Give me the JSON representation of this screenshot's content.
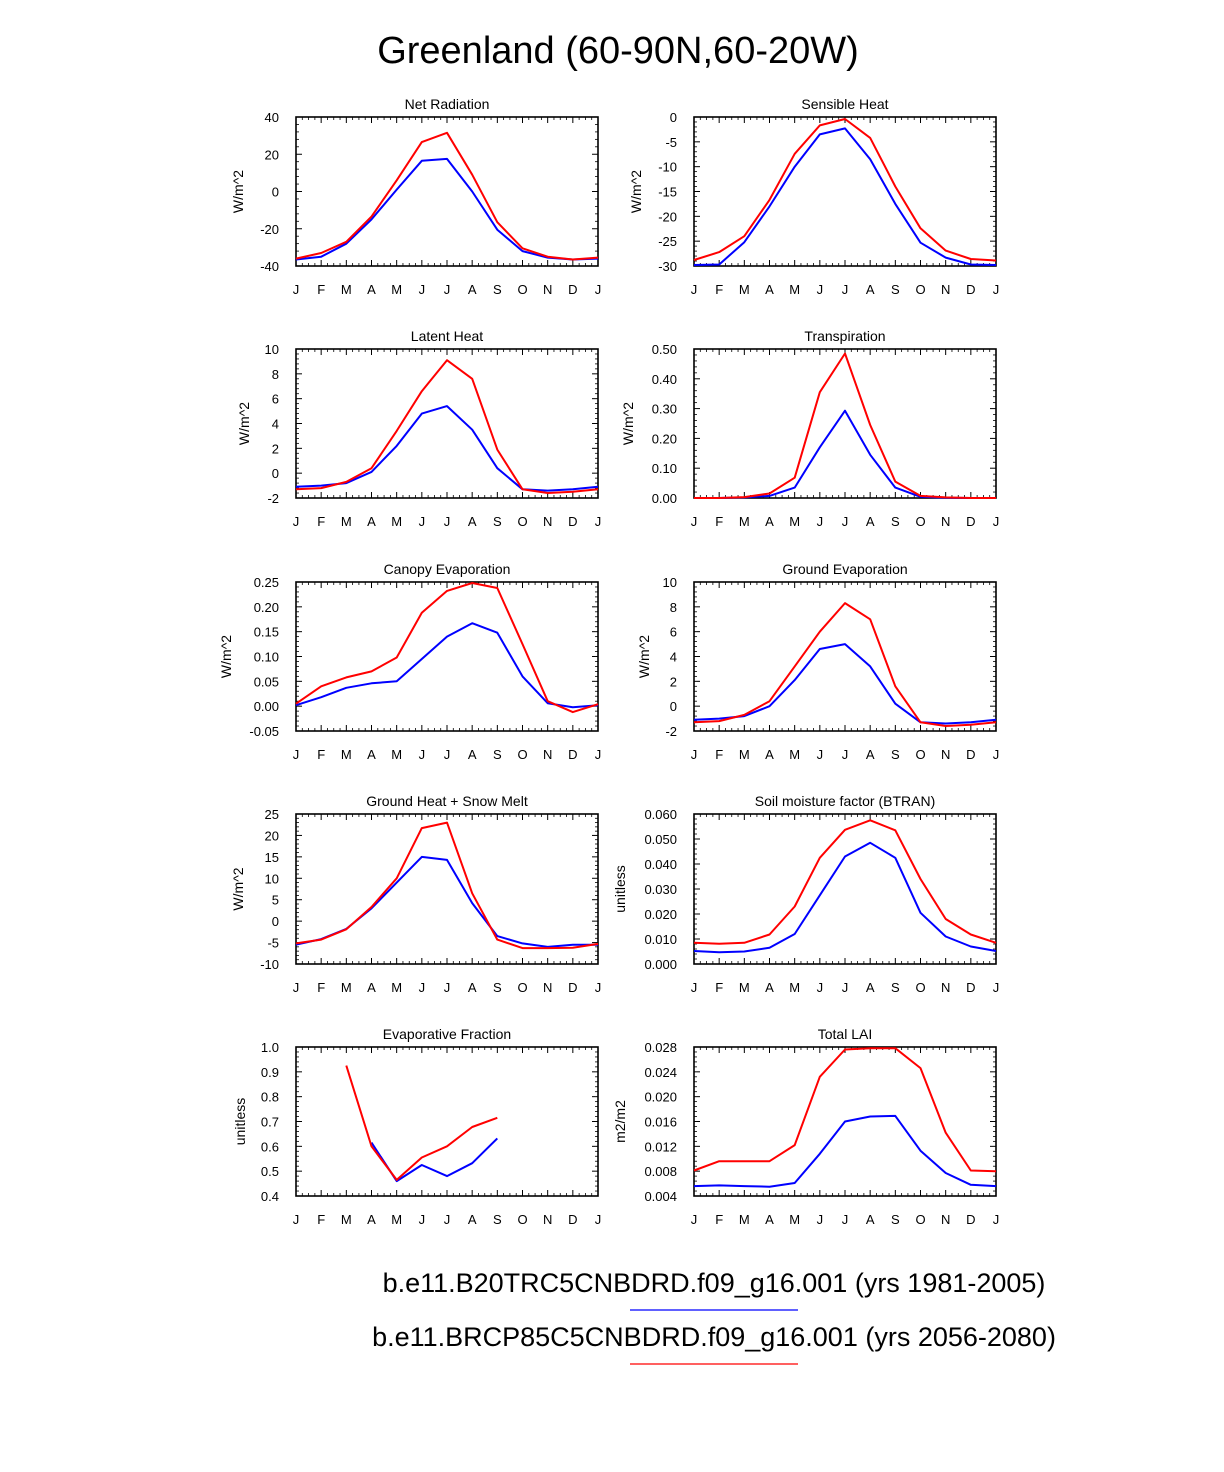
{
  "title": "Greenland (60-90N,60-20W)",
  "colors": {
    "historical": "#0000ff",
    "future": "#ff0000",
    "axis": "#000000",
    "background": "#ffffff"
  },
  "legend": [
    {
      "label": "b.e11.B20TRC5CNBDRD.f09_g16.001 (yrs 1981-2005)",
      "color": "#0000ff"
    },
    {
      "label": "b.e11.BRCP85C5CNBDRD.f09_g16.001 (yrs 2056-2080)",
      "color": "#ff0000"
    }
  ],
  "chart_data": [
    {
      "type": "line",
      "title": "Net Radiation",
      "ylabel": "W/m^2",
      "categories": [
        "J",
        "F",
        "M",
        "A",
        "M",
        "J",
        "J",
        "A",
        "S",
        "O",
        "N",
        "D",
        "J"
      ],
      "ylim": [
        -40,
        40
      ],
      "yticks": [
        "-40",
        "-20",
        "0",
        "20",
        "40"
      ],
      "series": [
        {
          "name": "b.e11.B20TRC5CNBDRD.f09_g16.001 (yrs 1981-2005)",
          "color": "#0000ff",
          "values": [
            -36.5,
            -35,
            -28,
            -15,
            1,
            16.5,
            17.5,
            0,
            -20.5,
            -32,
            -35.5,
            -36.5,
            -36
          ]
        },
        {
          "name": "b.e11.BRCP85C5CNBDRD.f09_g16.001 (yrs 2056-2080)",
          "color": "#ff0000",
          "values": [
            -36,
            -33,
            -27,
            -13.5,
            6,
            26.5,
            31.5,
            9,
            -16.5,
            -30.5,
            -35,
            -36.5,
            -35.5
          ]
        }
      ]
    },
    {
      "type": "line",
      "title": "Sensible Heat",
      "ylabel": "W/m^2",
      "categories": [
        "J",
        "F",
        "M",
        "A",
        "M",
        "J",
        "J",
        "A",
        "S",
        "O",
        "N",
        "D",
        "J"
      ],
      "ylim": [
        -30,
        0
      ],
      "yticks": [
        "-30",
        "-25",
        "-20",
        "-15",
        "-10",
        "-5",
        "0"
      ],
      "series": [
        {
          "name": "b.e11.B20TRC5CNBDRD.f09_g16.001 (yrs 1981-2005)",
          "color": "#0000ff",
          "values": [
            -29.8,
            -29.7,
            -25.2,
            -18,
            -10,
            -3.5,
            -2.3,
            -8.5,
            -17.5,
            -25.3,
            -28.3,
            -29.7,
            -29.8
          ]
        },
        {
          "name": "b.e11.BRCP85C5CNBDRD.f09_g16.001 (yrs 2056-2080)",
          "color": "#ff0000",
          "values": [
            -28.8,
            -27.2,
            -24,
            -16.7,
            -7.4,
            -1.7,
            -0.4,
            -4.2,
            -14,
            -22.4,
            -26.9,
            -28.6,
            -28.9
          ]
        }
      ]
    },
    {
      "type": "line",
      "title": "Latent Heat",
      "ylabel": "W/m^2",
      "categories": [
        "J",
        "F",
        "M",
        "A",
        "M",
        "J",
        "J",
        "A",
        "S",
        "O",
        "N",
        "D",
        "J"
      ],
      "ylim": [
        -2,
        10
      ],
      "yticks": [
        "-2",
        "0",
        "2",
        "4",
        "6",
        "8",
        "10"
      ],
      "series": [
        {
          "name": "b.e11.B20TRC5CNBDRD.f09_g16.001 (yrs 1981-2005)",
          "color": "#0000ff",
          "values": [
            -1.1,
            -1,
            -0.8,
            0.1,
            2.2,
            4.8,
            5.4,
            3.5,
            0.4,
            -1.3,
            -1.4,
            -1.3,
            -1.1
          ]
        },
        {
          "name": "b.e11.BRCP85C5CNBDRD.f09_g16.001 (yrs 2056-2080)",
          "color": "#ff0000",
          "values": [
            -1.3,
            -1.2,
            -0.7,
            0.4,
            3.4,
            6.6,
            9.1,
            7.6,
            1.9,
            -1.3,
            -1.6,
            -1.5,
            -1.3
          ]
        }
      ]
    },
    {
      "type": "line",
      "title": "Transpiration",
      "ylabel": "W/m^2",
      "categories": [
        "J",
        "F",
        "M",
        "A",
        "M",
        "J",
        "J",
        "A",
        "S",
        "O",
        "N",
        "D",
        "J"
      ],
      "ylim": [
        0,
        0.5
      ],
      "yticks": [
        "0.00",
        "0.10",
        "0.20",
        "0.30",
        "0.40",
        "0.50"
      ],
      "series": [
        {
          "name": "b.e11.B20TRC5CNBDRD.f09_g16.001 (yrs 1981-2005)",
          "color": "#0000ff",
          "values": [
            0,
            0,
            0.002,
            0.007,
            0.035,
            0.17,
            0.293,
            0.145,
            0.035,
            0.004,
            0.001,
            0,
            0
          ]
        },
        {
          "name": "b.e11.BRCP85C5CNBDRD.f09_g16.001 (yrs 2056-2080)",
          "color": "#ff0000",
          "values": [
            0,
            0,
            0.003,
            0.015,
            0.068,
            0.355,
            0.485,
            0.245,
            0.055,
            0.007,
            0.002,
            0,
            0
          ]
        }
      ]
    },
    {
      "type": "line",
      "title": "Canopy Evaporation",
      "ylabel": "W/m^2",
      "categories": [
        "J",
        "F",
        "M",
        "A",
        "M",
        "J",
        "J",
        "A",
        "S",
        "O",
        "N",
        "D",
        "J"
      ],
      "ylim": [
        -0.05,
        0.25
      ],
      "yticks": [
        "-0.05",
        "0.00",
        "0.05",
        "0.10",
        "0.15",
        "0.20",
        "0.25"
      ],
      "series": [
        {
          "name": "b.e11.B20TRC5CNBDRD.f09_g16.001 (yrs 1981-2005)",
          "color": "#0000ff",
          "values": [
            0.002,
            0.018,
            0.037,
            0.046,
            0.05,
            0.095,
            0.14,
            0.167,
            0.148,
            0.06,
            0.006,
            -0.002,
            0.002
          ]
        },
        {
          "name": "b.e11.BRCP85C5CNBDRD.f09_g16.001 (yrs 2056-2080)",
          "color": "#ff0000",
          "values": [
            0.005,
            0.04,
            0.058,
            0.07,
            0.098,
            0.188,
            0.232,
            0.248,
            0.238,
            0.125,
            0.01,
            -0.012,
            0.004
          ]
        }
      ]
    },
    {
      "type": "line",
      "title": "Ground Evaporation",
      "ylabel": "W/m^2",
      "categories": [
        "J",
        "F",
        "M",
        "A",
        "M",
        "J",
        "J",
        "A",
        "S",
        "O",
        "N",
        "D",
        "J"
      ],
      "ylim": [
        -2,
        10
      ],
      "yticks": [
        "-2",
        "0",
        "2",
        "4",
        "6",
        "8",
        "10"
      ],
      "series": [
        {
          "name": "b.e11.B20TRC5CNBDRD.f09_g16.001 (yrs 1981-2005)",
          "color": "#0000ff",
          "values": [
            -1.1,
            -1,
            -0.8,
            0,
            2.1,
            4.6,
            5,
            3.2,
            0.2,
            -1.3,
            -1.4,
            -1.3,
            -1.1
          ]
        },
        {
          "name": "b.e11.BRCP85C5CNBDRD.f09_g16.001 (yrs 2056-2080)",
          "color": "#ff0000",
          "values": [
            -1.3,
            -1.2,
            -0.7,
            0.4,
            3.2,
            6,
            8.3,
            7,
            1.6,
            -1.3,
            -1.6,
            -1.5,
            -1.3
          ]
        }
      ]
    },
    {
      "type": "line",
      "title": "Ground Heat + Snow Melt",
      "ylabel": "W/m^2",
      "categories": [
        "J",
        "F",
        "M",
        "A",
        "M",
        "J",
        "J",
        "A",
        "S",
        "O",
        "N",
        "D",
        "J"
      ],
      "ylim": [
        -10,
        25
      ],
      "yticks": [
        "-10",
        "-5",
        "0",
        "5",
        "10",
        "15",
        "20",
        "25"
      ],
      "series": [
        {
          "name": "b.e11.B20TRC5CNBDRD.f09_g16.001 (yrs 1981-2005)",
          "color": "#0000ff",
          "values": [
            -5.5,
            -4.2,
            -1.8,
            3,
            9,
            15,
            14.3,
            4.2,
            -3.5,
            -5.2,
            -6,
            -5.5,
            -5.5
          ]
        },
        {
          "name": "b.e11.BRCP85C5CNBDRD.f09_g16.001 (yrs 2056-2080)",
          "color": "#ff0000",
          "values": [
            -5.2,
            -4.3,
            -1.9,
            3.3,
            10,
            21.7,
            23,
            6.5,
            -4.3,
            -6.3,
            -6.3,
            -6.2,
            -5.3
          ]
        }
      ]
    },
    {
      "type": "line",
      "title": "Soil moisture factor (BTRAN)",
      "ylabel": "unitless",
      "categories": [
        "J",
        "F",
        "M",
        "A",
        "M",
        "J",
        "J",
        "A",
        "S",
        "O",
        "N",
        "D",
        "J"
      ],
      "ylim": [
        0,
        0.06
      ],
      "yticks": [
        "0.000",
        "0.010",
        "0.020",
        "0.030",
        "0.040",
        "0.050",
        "0.060"
      ],
      "series": [
        {
          "name": "b.e11.B20TRC5CNBDRD.f09_g16.001 (yrs 1981-2005)",
          "color": "#0000ff",
          "values": [
            0.0052,
            0.0047,
            0.005,
            0.0065,
            0.012,
            0.0275,
            0.043,
            0.0485,
            0.0425,
            0.0205,
            0.011,
            0.007,
            0.0052
          ]
        },
        {
          "name": "b.e11.BRCP85C5CNBDRD.f09_g16.001 (yrs 2056-2080)",
          "color": "#ff0000",
          "values": [
            0.0085,
            0.0081,
            0.0085,
            0.0118,
            0.023,
            0.0425,
            0.0537,
            0.0575,
            0.0535,
            0.034,
            0.018,
            0.0118,
            0.0085
          ]
        }
      ]
    },
    {
      "type": "line",
      "title": "Evaporative Fraction",
      "ylabel": "unitless",
      "categories": [
        "J",
        "F",
        "M",
        "A",
        "M",
        "J",
        "J",
        "A",
        "S",
        "O",
        "N",
        "D",
        "J"
      ],
      "ylim": [
        0.4,
        1.0
      ],
      "yticks": [
        "0.4",
        "0.5",
        "0.6",
        "0.7",
        "0.8",
        "0.9",
        "1.0"
      ],
      "series": [
        {
          "name": "b.e11.B20TRC5CNBDRD.f09_g16.001 (yrs 1981-2005)",
          "color": "#0000ff",
          "values": [
            null,
            null,
            null,
            0.615,
            0.46,
            0.525,
            0.48,
            0.532,
            0.632,
            null,
            null,
            null,
            null
          ]
        },
        {
          "name": "b.e11.BRCP85C5CNBDRD.f09_g16.001 (yrs 2056-2080)",
          "color": "#ff0000",
          "values": [
            null,
            null,
            0.925,
            0.6,
            0.465,
            0.555,
            0.6,
            0.678,
            0.715,
            null,
            null,
            null,
            null
          ]
        }
      ]
    },
    {
      "type": "line",
      "title": "Total LAI",
      "ylabel": "m2/m2",
      "categories": [
        "J",
        "F",
        "M",
        "A",
        "M",
        "J",
        "J",
        "A",
        "S",
        "O",
        "N",
        "D",
        "J"
      ],
      "ylim": [
        0.004,
        0.028
      ],
      "yticks": [
        "0.004",
        "0.008",
        "0.012",
        "0.016",
        "0.020",
        "0.024",
        "0.028"
      ],
      "series": [
        {
          "name": "b.e11.B20TRC5CNBDRD.f09_g16.001 (yrs 1981-2005)",
          "color": "#0000ff",
          "values": [
            0.0056,
            0.0057,
            0.0056,
            0.0055,
            0.0061,
            0.0108,
            0.016,
            0.0168,
            0.0169,
            0.0113,
            0.0077,
            0.0058,
            0.0056
          ]
        },
        {
          "name": "b.e11.BRCP85C5CNBDRD.f09_g16.001 (yrs 2056-2080)",
          "color": "#ff0000",
          "values": [
            0.0081,
            0.0096,
            0.0096,
            0.0096,
            0.0122,
            0.0232,
            0.0276,
            0.0278,
            0.0278,
            0.0246,
            0.0142,
            0.0081,
            0.008
          ]
        }
      ]
    }
  ]
}
